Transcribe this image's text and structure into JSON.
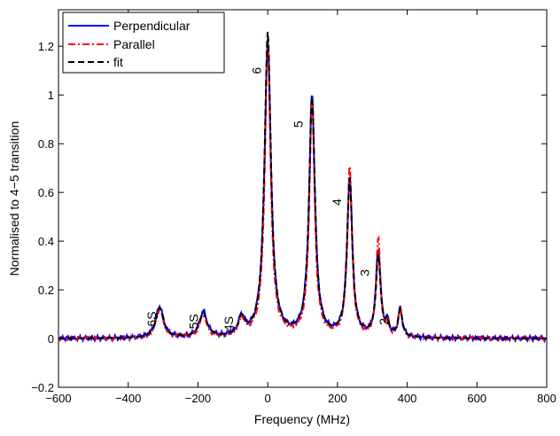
{
  "chart_data": {
    "type": "line",
    "title": "",
    "xlabel": "Frequency (MHz)",
    "ylabel": "Normalised to 4−5 transition",
    "xlim": [
      -600,
      800
    ],
    "ylim": [
      -0.2,
      1.35
    ],
    "xticks": [
      -600,
      -400,
      -200,
      0,
      200,
      400,
      600,
      800
    ],
    "xtick_labels": [
      "−600",
      "−400",
      "−200",
      "0",
      "200",
      "400",
      "600",
      "800"
    ],
    "yticks": [
      -0.2,
      0,
      0.2,
      0.4,
      0.6,
      0.8,
      1,
      1.2
    ],
    "ytick_labels": [
      "−0.2",
      "0",
      "0.2",
      "0.4",
      "0.6",
      "0.8",
      "1",
      "1.2"
    ],
    "grid": false,
    "legend_position": "top-left",
    "series": [
      {
        "name": "Perpendicular",
        "color": "#0000ff",
        "style": "solid",
        "peaks": [
          [
            -310,
            0.13,
            13
          ],
          [
            -185,
            0.105,
            13
          ],
          [
            -75,
            0.075,
            11
          ],
          [
            0,
            1.22,
            11
          ],
          [
            127,
            0.99,
            10
          ],
          [
            235,
            0.655,
            9
          ],
          [
            317,
            0.355,
            8
          ],
          [
            343,
            0.05,
            6
          ],
          [
            380,
            0.115,
            7
          ]
        ]
      },
      {
        "name": "Parallel",
        "color": "#ff0000",
        "style": "dashdot",
        "peaks": [
          [
            -310,
            0.12,
            12
          ],
          [
            -185,
            0.09,
            12
          ],
          [
            -75,
            0.07,
            10
          ],
          [
            0,
            1.21,
            10
          ],
          [
            127,
            0.98,
            9
          ],
          [
            235,
            0.7,
            8
          ],
          [
            317,
            0.41,
            7
          ],
          [
            343,
            0.05,
            5
          ],
          [
            380,
            0.125,
            6
          ]
        ]
      },
      {
        "name": "fit",
        "color": "#000000",
        "style": "dashed",
        "peaks": [
          [
            -310,
            0.125,
            13
          ],
          [
            -185,
            0.1,
            13
          ],
          [
            -75,
            0.07,
            11
          ],
          [
            0,
            1.25,
            11
          ],
          [
            127,
            0.985,
            10
          ],
          [
            235,
            0.65,
            9
          ],
          [
            317,
            0.33,
            8
          ],
          [
            343,
            0.05,
            6
          ],
          [
            380,
            0.11,
            7
          ]
        ]
      }
    ],
    "annotations": [
      {
        "text": "6S",
        "x": -320,
        "y": 0.08
      },
      {
        "text": "5S",
        "x": -200,
        "y": 0.07
      },
      {
        "text": "4S",
        "x": -100,
        "y": 0.06
      },
      {
        "text": "6",
        "x": -20,
        "y": 1.1
      },
      {
        "text": "5",
        "x": 100,
        "y": 0.88
      },
      {
        "text": "4",
        "x": 210,
        "y": 0.56
      },
      {
        "text": "3",
        "x": 290,
        "y": 0.27
      },
      {
        "text": "2",
        "x": 345,
        "y": 0.07
      }
    ]
  }
}
